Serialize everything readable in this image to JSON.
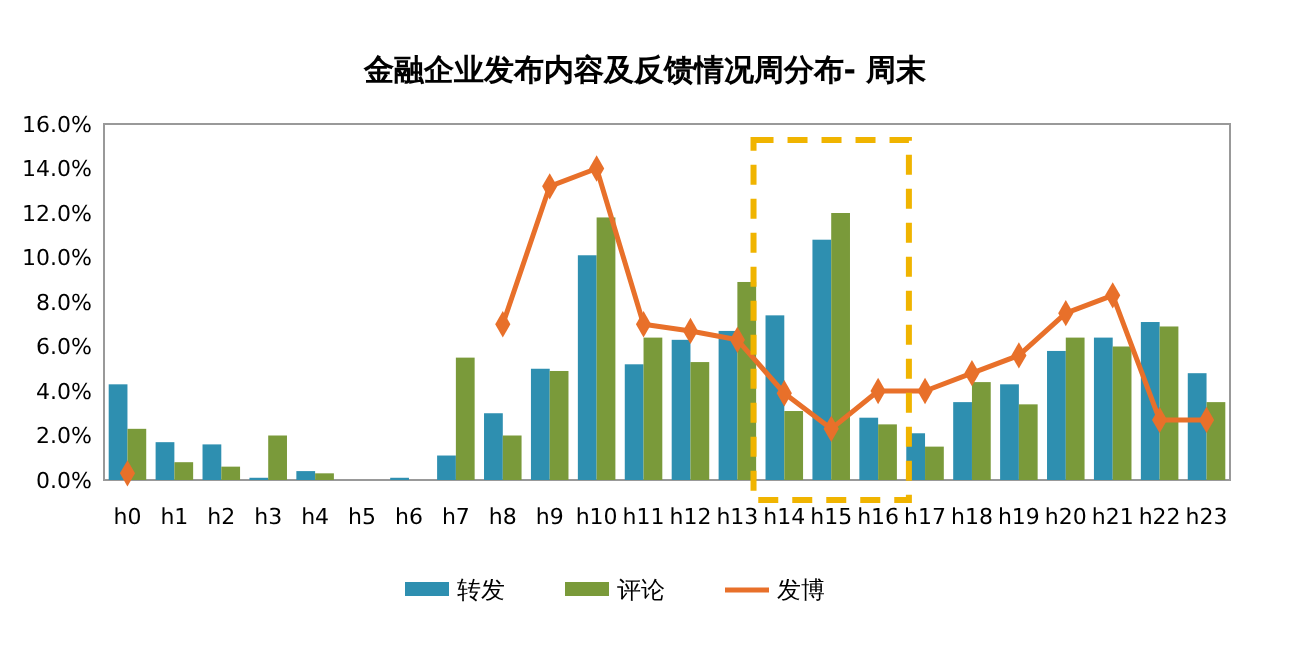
{
  "chart_data": {
    "type": "bar",
    "title": "金融企业发布内容及反馈情况周分布- 周末",
    "categories": [
      "h0",
      "h1",
      "h2",
      "h3",
      "h4",
      "h5",
      "h6",
      "h7",
      "h8",
      "h9",
      "h10",
      "h11",
      "h12",
      "h13",
      "h14",
      "h15",
      "h16",
      "h17",
      "h18",
      "h19",
      "h20",
      "h21",
      "h22",
      "h23"
    ],
    "series": [
      {
        "name": "转发",
        "color": "#2e8fb0",
        "values": [
          4.3,
          1.7,
          1.6,
          0.1,
          0.4,
          0,
          0.1,
          1.1,
          3.0,
          5.0,
          10.1,
          5.2,
          6.3,
          6.7,
          7.4,
          10.8,
          2.8,
          2.1,
          3.5,
          4.3,
          5.8,
          6.4,
          7.1,
          4.8
        ]
      },
      {
        "name": "评论",
        "color": "#7a9a3a",
        "values": [
          2.3,
          0.8,
          0.6,
          2.0,
          0.3,
          0,
          0,
          5.5,
          2.0,
          4.9,
          11.8,
          6.4,
          5.3,
          8.9,
          3.1,
          12.0,
          2.5,
          1.5,
          4.4,
          3.4,
          6.4,
          6.0,
          6.9,
          3.5
        ]
      },
      {
        "name": "发博",
        "color": "#e8702a",
        "type": "line",
        "marker": "diamond",
        "values": [
          0.3,
          null,
          null,
          null,
          null,
          null,
          null,
          null,
          7.0,
          13.2,
          14.0,
          7.0,
          6.7,
          6.3,
          3.9,
          2.3,
          4.0,
          4.0,
          4.8,
          5.6,
          7.5,
          8.3,
          2.7,
          2.7
        ]
      }
    ],
    "ylim": [
      0,
      16
    ],
    "yticks": [
      {
        "value": 0,
        "label": "0.0%"
      },
      {
        "value": 2,
        "label": "2.0%"
      },
      {
        "value": 4,
        "label": "4.0%"
      },
      {
        "value": 6,
        "label": "6.0%"
      },
      {
        "value": 8,
        "label": "8.0%"
      },
      {
        "value": 10,
        "label": "10.0%"
      },
      {
        "value": 12,
        "label": "12.0%"
      },
      {
        "value": 14,
        "label": "14.0%"
      },
      {
        "value": 16,
        "label": "16.0%"
      }
    ],
    "grid": false,
    "legend": "bottom"
  }
}
